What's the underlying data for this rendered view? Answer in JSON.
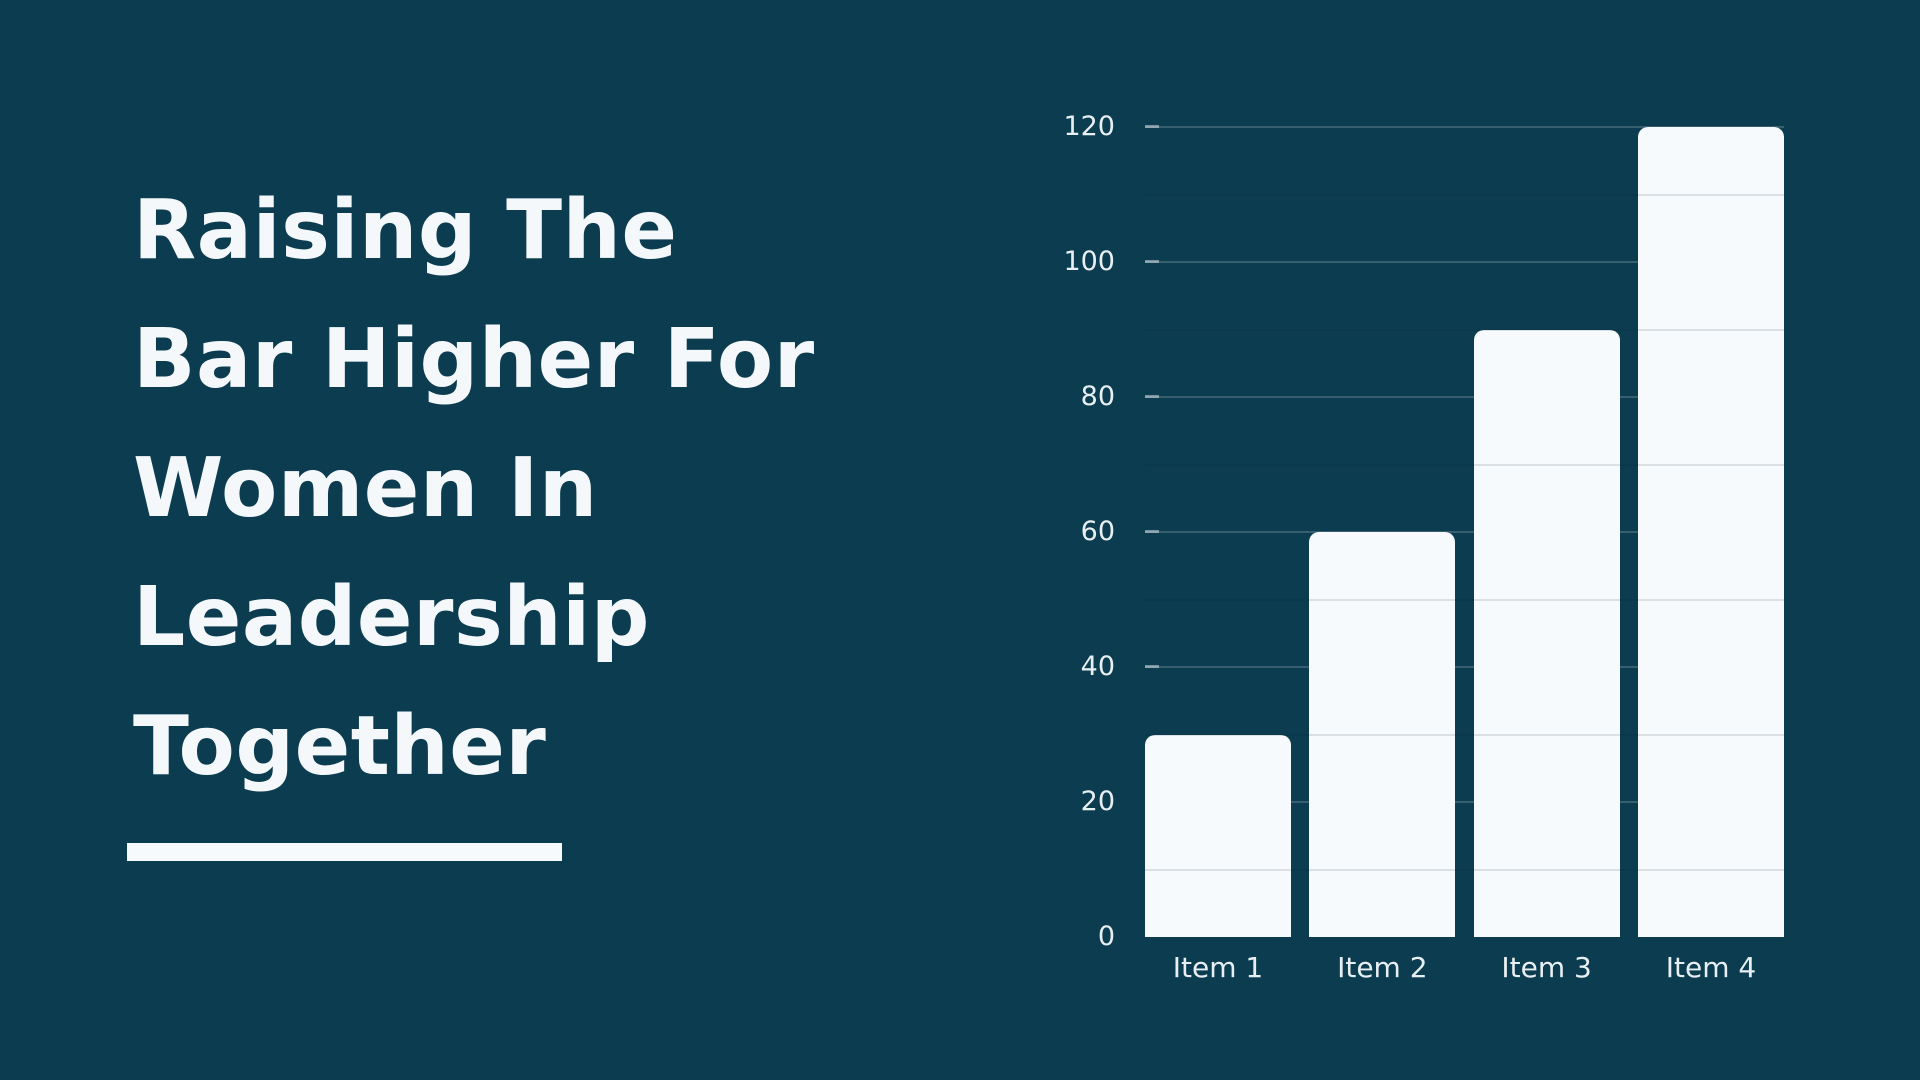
{
  "page": {
    "background_color": "#0B3C50"
  },
  "title": {
    "full_text": "Raising The Bar Higher For Women In Leadership Together",
    "lines": [
      "Raising The",
      "Bar Higher For",
      "Women In",
      "Leadership",
      "Together"
    ],
    "color": "#F4F8FA",
    "underline_color": "#F7FAFC"
  },
  "chart_data": {
    "type": "bar",
    "categories": [
      "Item 1",
      "Item 2",
      "Item 3",
      "Item 4"
    ],
    "values": [
      30,
      60,
      90,
      120
    ],
    "title": "",
    "xlabel": "",
    "ylabel": "",
    "ylim": [
      0,
      120
    ],
    "y_ticks": [
      0,
      20,
      40,
      60,
      80,
      100,
      120
    ],
    "y_tick_labels": [
      "0",
      "20",
      "40",
      "60",
      "80",
      "100",
      "120"
    ],
    "grid": "horizontal-major",
    "minor_grid_interval": 10,
    "legend_position": "none",
    "bar_color": "#F7FAFC",
    "gridline_color": "#3C6373",
    "tick_label_color": "#E8EFF2"
  }
}
